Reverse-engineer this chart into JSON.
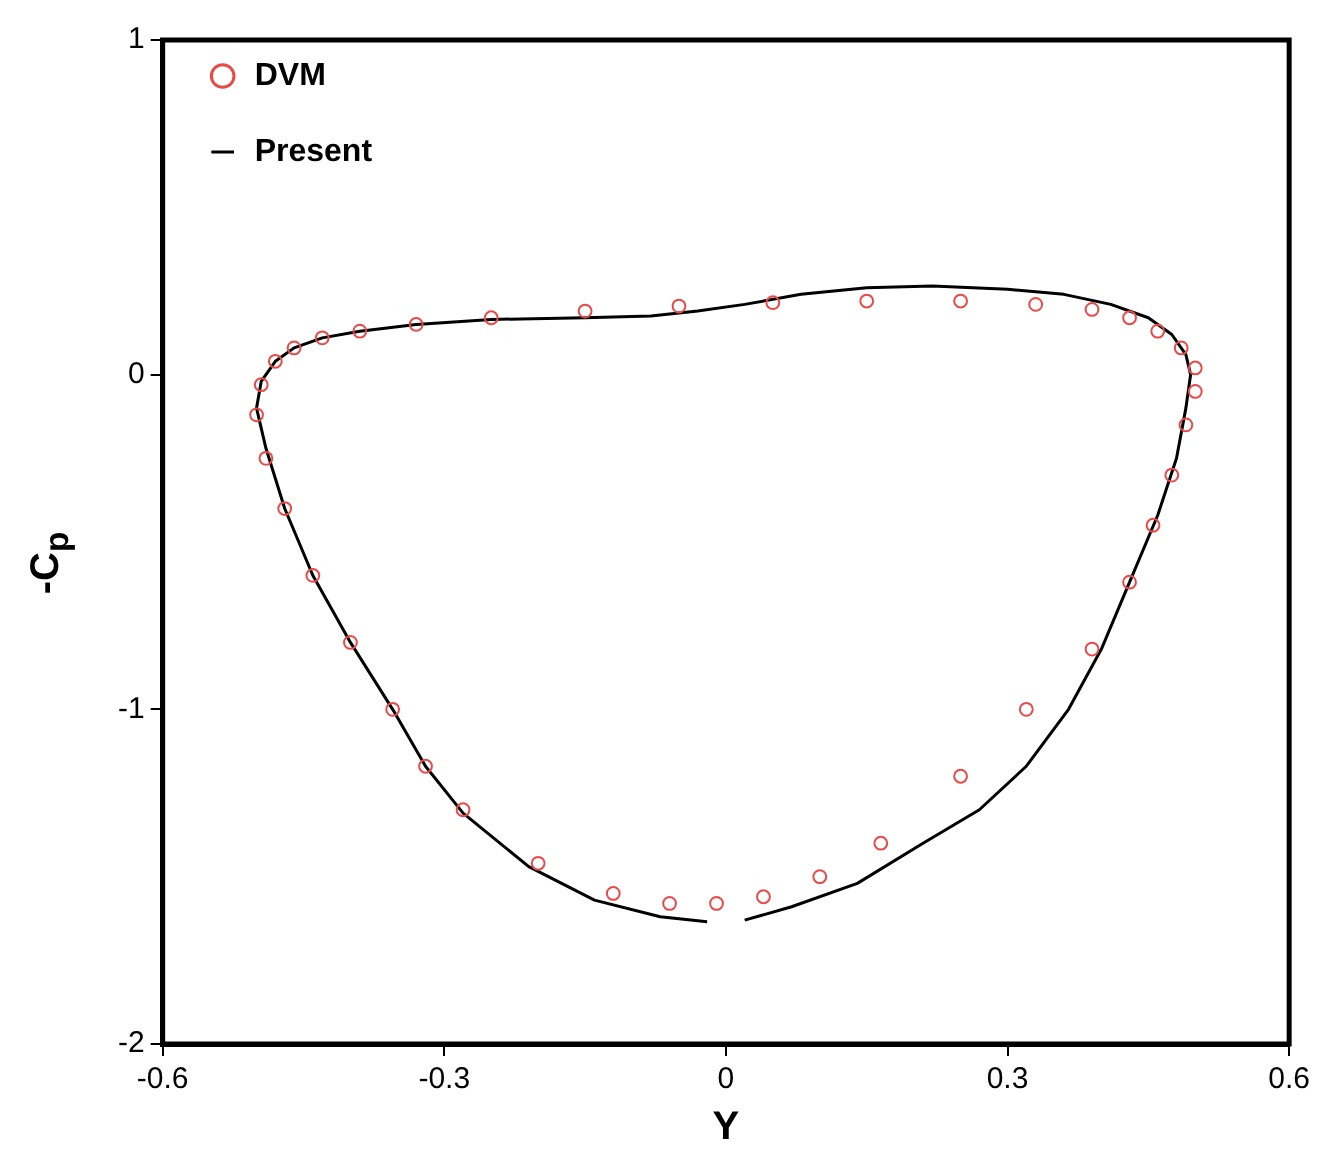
{
  "chart_data": {
    "type": "scatter",
    "xlabel": "Y",
    "ylabel": "-C$_{p}$",
    "xlim": [
      -0.6,
      0.6
    ],
    "xticks": [
      -0.6,
      -0.3,
      0,
      0.3,
      0.6
    ],
    "ylim": [
      -2,
      1
    ],
    "yticks": [
      -2,
      -1,
      0,
      1
    ],
    "grid": false,
    "legend": "top left",
    "series": [
      {
        "name": "DVM",
        "type": "scatter",
        "marker": "circle",
        "color": "#e84a4a",
        "x": [
          -0.5,
          -0.495,
          -0.48,
          -0.46,
          -0.43,
          -0.39,
          -0.33,
          -0.25,
          -0.15,
          -0.05,
          0.05,
          0.15,
          0.25,
          0.33,
          0.39,
          0.43,
          0.46,
          0.485,
          0.5,
          0.5,
          0.49,
          0.475,
          0.455,
          0.43,
          0.39,
          0.32,
          0.25,
          0.165,
          0.1,
          0.04,
          -0.01,
          -0.06,
          -0.12,
          -0.2,
          -0.28,
          -0.32,
          -0.355,
          -0.4,
          -0.44,
          -0.47,
          -0.49
        ],
        "values": [
          -0.12,
          -0.03,
          0.04,
          0.08,
          0.11,
          0.13,
          0.15,
          0.17,
          0.19,
          0.205,
          0.215,
          0.22,
          0.22,
          0.21,
          0.195,
          0.17,
          0.13,
          0.08,
          0.02,
          -0.05,
          -0.15,
          -0.3,
          -0.45,
          -0.62,
          -0.82,
          -1.0,
          -1.2,
          -1.4,
          -1.5,
          -1.56,
          -1.58,
          -1.58,
          -1.55,
          -1.46,
          -1.3,
          -1.17,
          -1.0,
          -0.8,
          -0.6,
          -0.4,
          -0.25
        ]
      },
      {
        "name": "Present",
        "type": "line",
        "marker": "none",
        "line_style": "solid",
        "color": "#000000",
        "x": [
          -0.02,
          -0.07,
          -0.14,
          -0.21,
          -0.28,
          -0.32,
          -0.355,
          -0.4,
          -0.44,
          -0.47,
          -0.49,
          -0.5,
          -0.495,
          -0.48,
          -0.46,
          -0.43,
          -0.39,
          -0.33,
          -0.25,
          -0.15,
          -0.08,
          -0.03,
          0.02,
          0.08,
          0.15,
          0.22,
          0.3,
          0.36,
          0.41,
          0.45,
          0.475,
          0.49,
          0.495,
          0.49,
          0.48,
          0.46,
          0.43,
          0.4,
          0.365,
          0.32,
          0.27,
          0.21,
          0.14,
          0.07,
          0.02
        ],
        "values": [
          -1.635,
          -1.62,
          -1.57,
          -1.47,
          -1.31,
          -1.17,
          -1.0,
          -0.8,
          -0.6,
          -0.4,
          -0.22,
          -0.1,
          -0.02,
          0.04,
          0.08,
          0.11,
          0.13,
          0.15,
          0.165,
          0.17,
          0.175,
          0.19,
          0.21,
          0.24,
          0.26,
          0.265,
          0.255,
          0.24,
          0.21,
          0.17,
          0.12,
          0.06,
          0,
          -0.1,
          -0.25,
          -0.42,
          -0.62,
          -0.82,
          -1.0,
          -1.17,
          -1.3,
          -1.4,
          -1.52,
          -1.59,
          -1.63
        ]
      }
    ]
  }
}
